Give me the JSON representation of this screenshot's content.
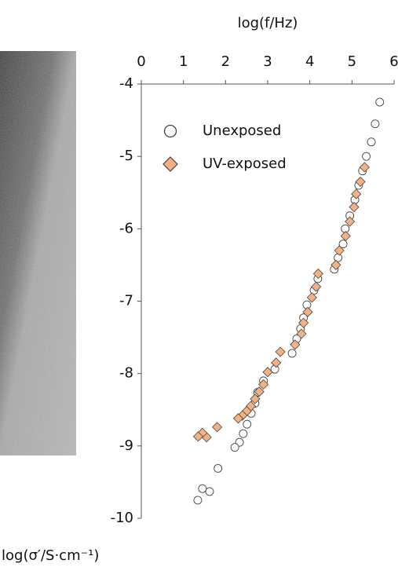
{
  "chart_data": {
    "type": "scatter",
    "title": "log(f/Hz)",
    "y_label": "log(σ′/S·cm⁻¹)",
    "xlim": [
      0,
      6
    ],
    "xticks": [
      0,
      1,
      2,
      3,
      4,
      5,
      6
    ],
    "ylim": [
      -10,
      -4
    ],
    "yticks": [
      -10,
      -9,
      -8,
      -7,
      -6,
      -5,
      -4
    ],
    "legend": "upper left",
    "series": [
      {
        "name": "Unexposed",
        "marker": "circle",
        "color": "#ffffff",
        "x": [
          5.66,
          5.55,
          5.46,
          5.34,
          5.25,
          5.16,
          5.07,
          4.95,
          4.84,
          4.79,
          4.67,
          4.58,
          4.19,
          4.1,
          3.93,
          3.85,
          3.78,
          3.69,
          3.58,
          3.17,
          2.9,
          2.76,
          2.7,
          2.61,
          2.51,
          2.42,
          2.33,
          2.22,
          1.82,
          1.62,
          1.45,
          1.34
        ],
        "values": [
          -4.25,
          -4.55,
          -4.8,
          -5.0,
          -5.2,
          -5.4,
          -5.6,
          -5.82,
          -6.0,
          -6.21,
          -6.4,
          -6.56,
          -6.69,
          -6.85,
          -7.05,
          -7.23,
          -7.38,
          -7.52,
          -7.72,
          -7.94,
          -8.1,
          -8.26,
          -8.41,
          -8.55,
          -8.7,
          -8.83,
          -8.95,
          -9.02,
          -9.31,
          -9.63,
          -9.59,
          -9.75
        ]
      },
      {
        "name": "UV-exposed",
        "marker": "diamond",
        "color": "#f4b183",
        "x": [
          5.3,
          5.2,
          5.1,
          5.05,
          4.95,
          4.85,
          4.7,
          4.62,
          4.2,
          4.15,
          4.05,
          3.95,
          3.85,
          3.8,
          3.65,
          3.3,
          3.2,
          3.0,
          2.9,
          2.8,
          2.7,
          2.6,
          2.5,
          2.4,
          2.3,
          1.8,
          1.55,
          1.45,
          1.35
        ],
        "values": [
          -5.15,
          -5.35,
          -5.52,
          -5.7,
          -5.9,
          -6.1,
          -6.3,
          -6.5,
          -6.62,
          -6.8,
          -6.95,
          -7.15,
          -7.3,
          -7.45,
          -7.6,
          -7.7,
          -7.85,
          -7.98,
          -8.15,
          -8.25,
          -8.35,
          -8.45,
          -8.52,
          -8.58,
          -8.62,
          -8.74,
          -8.88,
          -8.82,
          -8.87
        ]
      }
    ]
  }
}
